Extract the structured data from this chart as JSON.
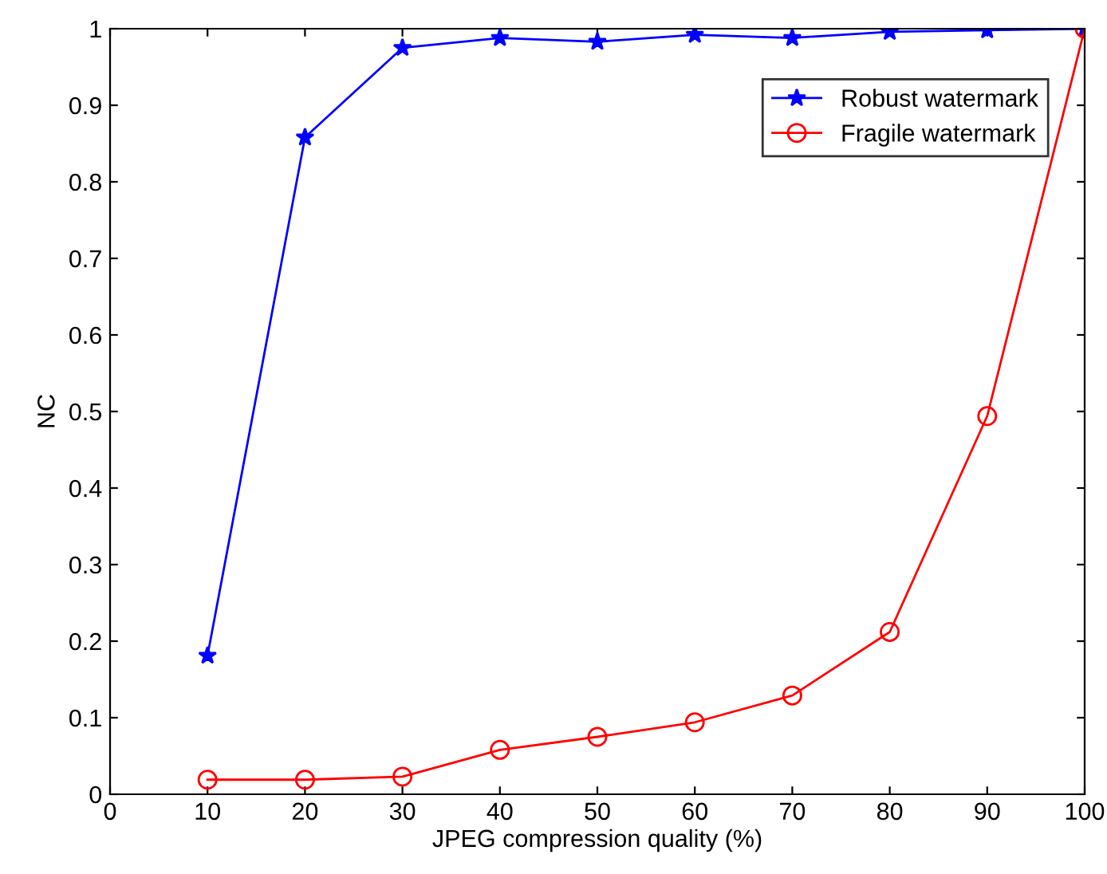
{
  "chart_data": {
    "type": "line",
    "xlabel": "JPEG compression quality (%)",
    "ylabel": "NC",
    "x": [
      10,
      20,
      30,
      40,
      50,
      60,
      70,
      80,
      90,
      100
    ],
    "series": [
      {
        "name": "Robust watermark",
        "color": "#0000ff",
        "marker": "star",
        "values": [
          0.181,
          0.858,
          0.975,
          0.988,
          0.983,
          0.992,
          0.988,
          0.996,
          0.998,
          1.0
        ]
      },
      {
        "name": "Fragile watermark",
        "color": "#ff0000",
        "marker": "circle",
        "values": [
          0.019,
          0.019,
          0.023,
          0.058,
          0.075,
          0.094,
          0.129,
          0.212,
          0.494,
          1.0
        ]
      }
    ],
    "xlim": [
      0,
      100
    ],
    "xticks": [
      0,
      10,
      20,
      30,
      40,
      50,
      60,
      70,
      80,
      90,
      100
    ],
    "ylim": [
      0,
      1
    ],
    "yticks": [
      0,
      0.1,
      0.2,
      0.3,
      0.4,
      0.5,
      0.6,
      0.7,
      0.8,
      0.9,
      1
    ],
    "grid": false,
    "legend": "top right",
    "line_style": "solid"
  }
}
